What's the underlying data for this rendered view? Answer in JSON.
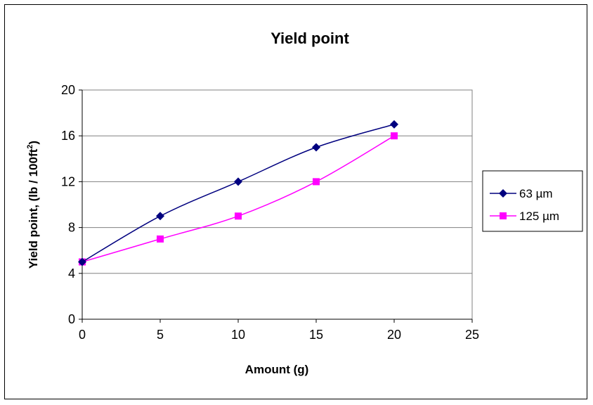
{
  "chart_data": {
    "type": "line",
    "title": "Yield point",
    "xlabel": "Amount (g)",
    "ylabel": {
      "main": "Yield point, (lb / 100ft",
      "superscript": "2",
      "close": ")"
    },
    "xlim": [
      0,
      25
    ],
    "ylim": [
      0,
      20
    ],
    "xticks": [
      0,
      5,
      10,
      15,
      20,
      25
    ],
    "yticks": [
      0,
      4,
      8,
      12,
      16,
      20
    ],
    "grid": "horizontal",
    "legend_position": "right",
    "series": [
      {
        "name": "63 µm",
        "color": "#00007f",
        "marker": "diamond",
        "x": [
          0,
          5,
          10,
          15,
          20
        ],
        "y": [
          5,
          9,
          12,
          15,
          17
        ]
      },
      {
        "name": "125 µm",
        "color": "#ff00ff",
        "marker": "square",
        "x": [
          0,
          5,
          10,
          15,
          20
        ],
        "y": [
          5,
          7,
          9,
          12,
          16
        ]
      }
    ]
  }
}
